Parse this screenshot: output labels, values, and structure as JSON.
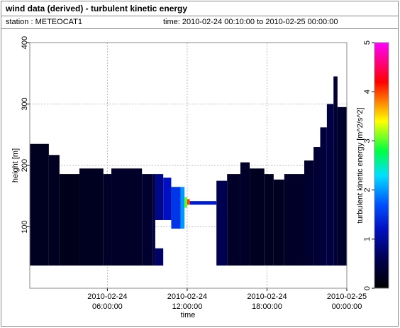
{
  "chart_data": {
    "type": "heatmap",
    "title": "wind data (derived) - turbulent kinetic energy",
    "station": "station : METEOCAT1",
    "period": "time: 2010-02-24 00:10:00 to 2010-02-25 00:00:00",
    "xlabel": "time",
    "ylabel": "height [m]",
    "colorbar_label": "turbulent kinetic energy [m^2/s^2]",
    "xlim": [
      0.1667,
      24
    ],
    "ylim": [
      0,
      400
    ],
    "xticks": [
      {
        "value": 6,
        "label": "2010-02-24 06:00:00"
      },
      {
        "value": 12,
        "label": "2010-02-24 12:00:00"
      },
      {
        "value": 18,
        "label": "2010-02-24 18:00:00"
      },
      {
        "value": 24,
        "label": "2010-02-25 00:00:00"
      }
    ],
    "yticks": [
      100,
      200,
      300,
      400
    ],
    "zlim": [
      0,
      5
    ],
    "zticks": [
      0,
      1,
      2,
      3,
      4,
      5
    ],
    "grid": true,
    "colormap": [
      [
        0,
        "#000000"
      ],
      [
        0.6,
        "#000050"
      ],
      [
        1.2,
        "#0010c0"
      ],
      [
        1.7,
        "#0050ff"
      ],
      [
        2.3,
        "#00e0ff"
      ],
      [
        2.8,
        "#00ff40"
      ],
      [
        3.4,
        "#ffff00"
      ],
      [
        3.8,
        "#ff8000"
      ],
      [
        4.2,
        "#ff0000"
      ],
      [
        5,
        "#ff00ff"
      ]
    ],
    "cells": [
      {
        "x0": 0.17,
        "x1": 1.6,
        "y0": 37,
        "y1": 235,
        "value": 0.25
      },
      {
        "x0": 1.6,
        "x1": 2.4,
        "y0": 37,
        "y1": 217,
        "value": 0.25
      },
      {
        "x0": 2.4,
        "x1": 3.9,
        "y0": 37,
        "y1": 186,
        "value": 0.2
      },
      {
        "x0": 3.9,
        "x1": 5.7,
        "y0": 37,
        "y1": 195,
        "value": 0.25
      },
      {
        "x0": 5.7,
        "x1": 6.3,
        "y0": 37,
        "y1": 186,
        "value": 0.3
      },
      {
        "x0": 6.3,
        "x1": 8.6,
        "y0": 37,
        "y1": 195,
        "value": 0.3
      },
      {
        "x0": 8.6,
        "x1": 9.4,
        "y0": 37,
        "y1": 186,
        "value": 0.35
      },
      {
        "x0": 9.4,
        "x1": 9.6,
        "y0": 37,
        "y1": 186,
        "value": 0.5
      },
      {
        "x0": 9.6,
        "x1": 10.2,
        "y0": 37,
        "y1": 65,
        "value": 0.7
      },
      {
        "x0": 9.6,
        "x1": 10.2,
        "y0": 111,
        "y1": 186,
        "value": 0.9
      },
      {
        "x0": 10.2,
        "x1": 10.8,
        "y0": 111,
        "y1": 180,
        "value": 1.2
      },
      {
        "x0": 10.8,
        "x1": 11.5,
        "y0": 97,
        "y1": 165,
        "value": 1.5
      },
      {
        "x0": 11.5,
        "x1": 11.8,
        "y0": 97,
        "y1": 165,
        "value": 2.0
      },
      {
        "x0": 11.8,
        "x1": 12.0,
        "y0": 131,
        "y1": 148,
        "value": 3.0
      },
      {
        "x0": 12.0,
        "x1": 12.2,
        "y0": 136,
        "y1": 145,
        "value": 4.0
      },
      {
        "x0": 12.2,
        "x1": 14.2,
        "y0": 136,
        "y1": 142,
        "value": 1.3
      },
      {
        "x0": 14.2,
        "x1": 15.0,
        "y0": 37,
        "y1": 175,
        "value": 0.6
      },
      {
        "x0": 15.0,
        "x1": 16.0,
        "y0": 37,
        "y1": 186,
        "value": 0.3
      },
      {
        "x0": 16.0,
        "x1": 16.7,
        "y0": 37,
        "y1": 205,
        "value": 0.3
      },
      {
        "x0": 16.7,
        "x1": 17.8,
        "y0": 37,
        "y1": 195,
        "value": 0.25
      },
      {
        "x0": 17.8,
        "x1": 18.5,
        "y0": 37,
        "y1": 186,
        "value": 0.25
      },
      {
        "x0": 18.5,
        "x1": 19.3,
        "y0": 37,
        "y1": 177,
        "value": 0.25
      },
      {
        "x0": 19.3,
        "x1": 20.8,
        "y0": 37,
        "y1": 186,
        "value": 0.3
      },
      {
        "x0": 20.8,
        "x1": 21.5,
        "y0": 37,
        "y1": 208,
        "value": 0.35
      },
      {
        "x0": 21.5,
        "x1": 22.0,
        "y0": 37,
        "y1": 230,
        "value": 0.4
      },
      {
        "x0": 22.0,
        "x1": 22.5,
        "y0": 37,
        "y1": 262,
        "value": 0.45
      },
      {
        "x0": 22.5,
        "x1": 23.0,
        "y0": 37,
        "y1": 300,
        "value": 0.5
      },
      {
        "x0": 23.0,
        "x1": 23.3,
        "y0": 37,
        "y1": 345,
        "value": 0.4
      },
      {
        "x0": 23.3,
        "x1": 24.0,
        "y0": 37,
        "y1": 295,
        "value": 0.35
      }
    ]
  }
}
